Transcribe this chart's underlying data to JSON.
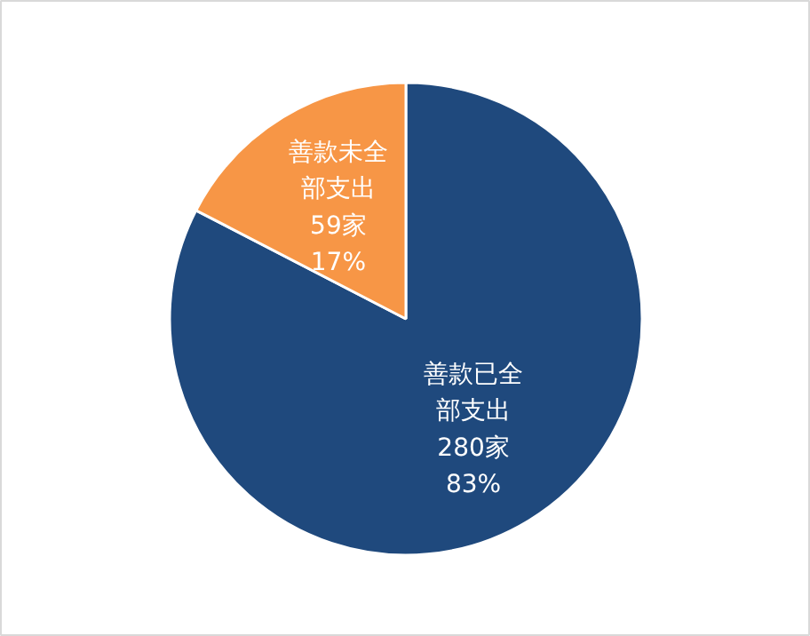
{
  "chart_data": {
    "type": "pie",
    "categories": [
      "善款已全部支出",
      "善款未全部支出"
    ],
    "values": [
      280,
      59
    ],
    "colors": [
      "#1f497d",
      "#f79646"
    ],
    "value_labels": [
      "280家\n83%",
      "59家\n17%"
    ]
  }
}
